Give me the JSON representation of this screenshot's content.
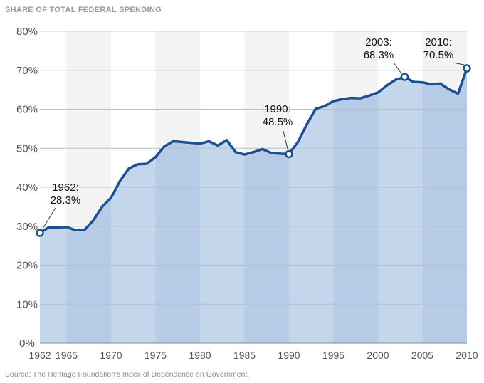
{
  "chart_data": {
    "type": "area",
    "title": "SHARE OF TOTAL FEDERAL SPENDING",
    "source": "Source: The Heritage Foundation's Index of Dependence on Government.",
    "xlabel": "",
    "ylabel": "",
    "xlim": [
      1962,
      2010
    ],
    "ylim": [
      0,
      80
    ],
    "grid": true,
    "y_ticks": [
      "0%",
      "10%",
      "20%",
      "30%",
      "40%",
      "50%",
      "60%",
      "70%",
      "80%"
    ],
    "x_ticks": [
      "1962",
      "1965",
      "1970",
      "1975",
      "1980",
      "1985",
      "1990",
      "1995",
      "2000",
      "2005",
      "2010"
    ],
    "colors": {
      "line": "#1c4f8e",
      "fill_light": "#c3d6ec",
      "fill_band": "#b6cbe5",
      "grid": "#b6c0c9"
    },
    "series": [
      {
        "x": [
          1962,
          1963,
          1964,
          1965,
          1966,
          1967,
          1968,
          1969,
          1970,
          1971,
          1972,
          1973,
          1974,
          1975,
          1976,
          1977,
          1978,
          1979,
          1980,
          1981,
          1982,
          1983,
          1984,
          1985,
          1986,
          1987,
          1988,
          1989,
          1990,
          1991,
          1992,
          1993,
          1994,
          1995,
          1996,
          1997,
          1998,
          1999,
          2000,
          2001,
          2002,
          2003,
          2004,
          2005,
          2006,
          2007,
          2008,
          2009,
          2010
        ],
        "y": [
          28.3,
          29.7,
          29.7,
          29.8,
          29.0,
          29.0,
          31.5,
          35.0,
          37.3,
          41.6,
          44.8,
          45.9,
          46.0,
          47.7,
          50.5,
          51.8,
          51.6,
          51.4,
          51.2,
          51.8,
          50.7,
          52.1,
          49.0,
          48.4,
          49.0,
          49.8,
          48.8,
          48.6,
          48.5,
          51.6,
          56.1,
          60.1,
          60.8,
          62.1,
          62.6,
          62.9,
          62.8,
          63.5,
          64.3,
          66.1,
          67.6,
          68.3,
          67.0,
          66.9,
          66.4,
          66.6,
          65.1,
          64.0,
          70.5
        ]
      }
    ],
    "annotations": [
      {
        "year": 1962,
        "value": 28.3,
        "line1": "1962:",
        "line2": "28.3%"
      },
      {
        "year": 1990,
        "value": 48.5,
        "line1": "1990:",
        "line2": "48.5%"
      },
      {
        "year": 2003,
        "value": 68.3,
        "line1": "2003:",
        "line2": "68.3%"
      },
      {
        "year": 2010,
        "value": 70.5,
        "line1": "2010:",
        "line2": "70.5%"
      }
    ]
  }
}
